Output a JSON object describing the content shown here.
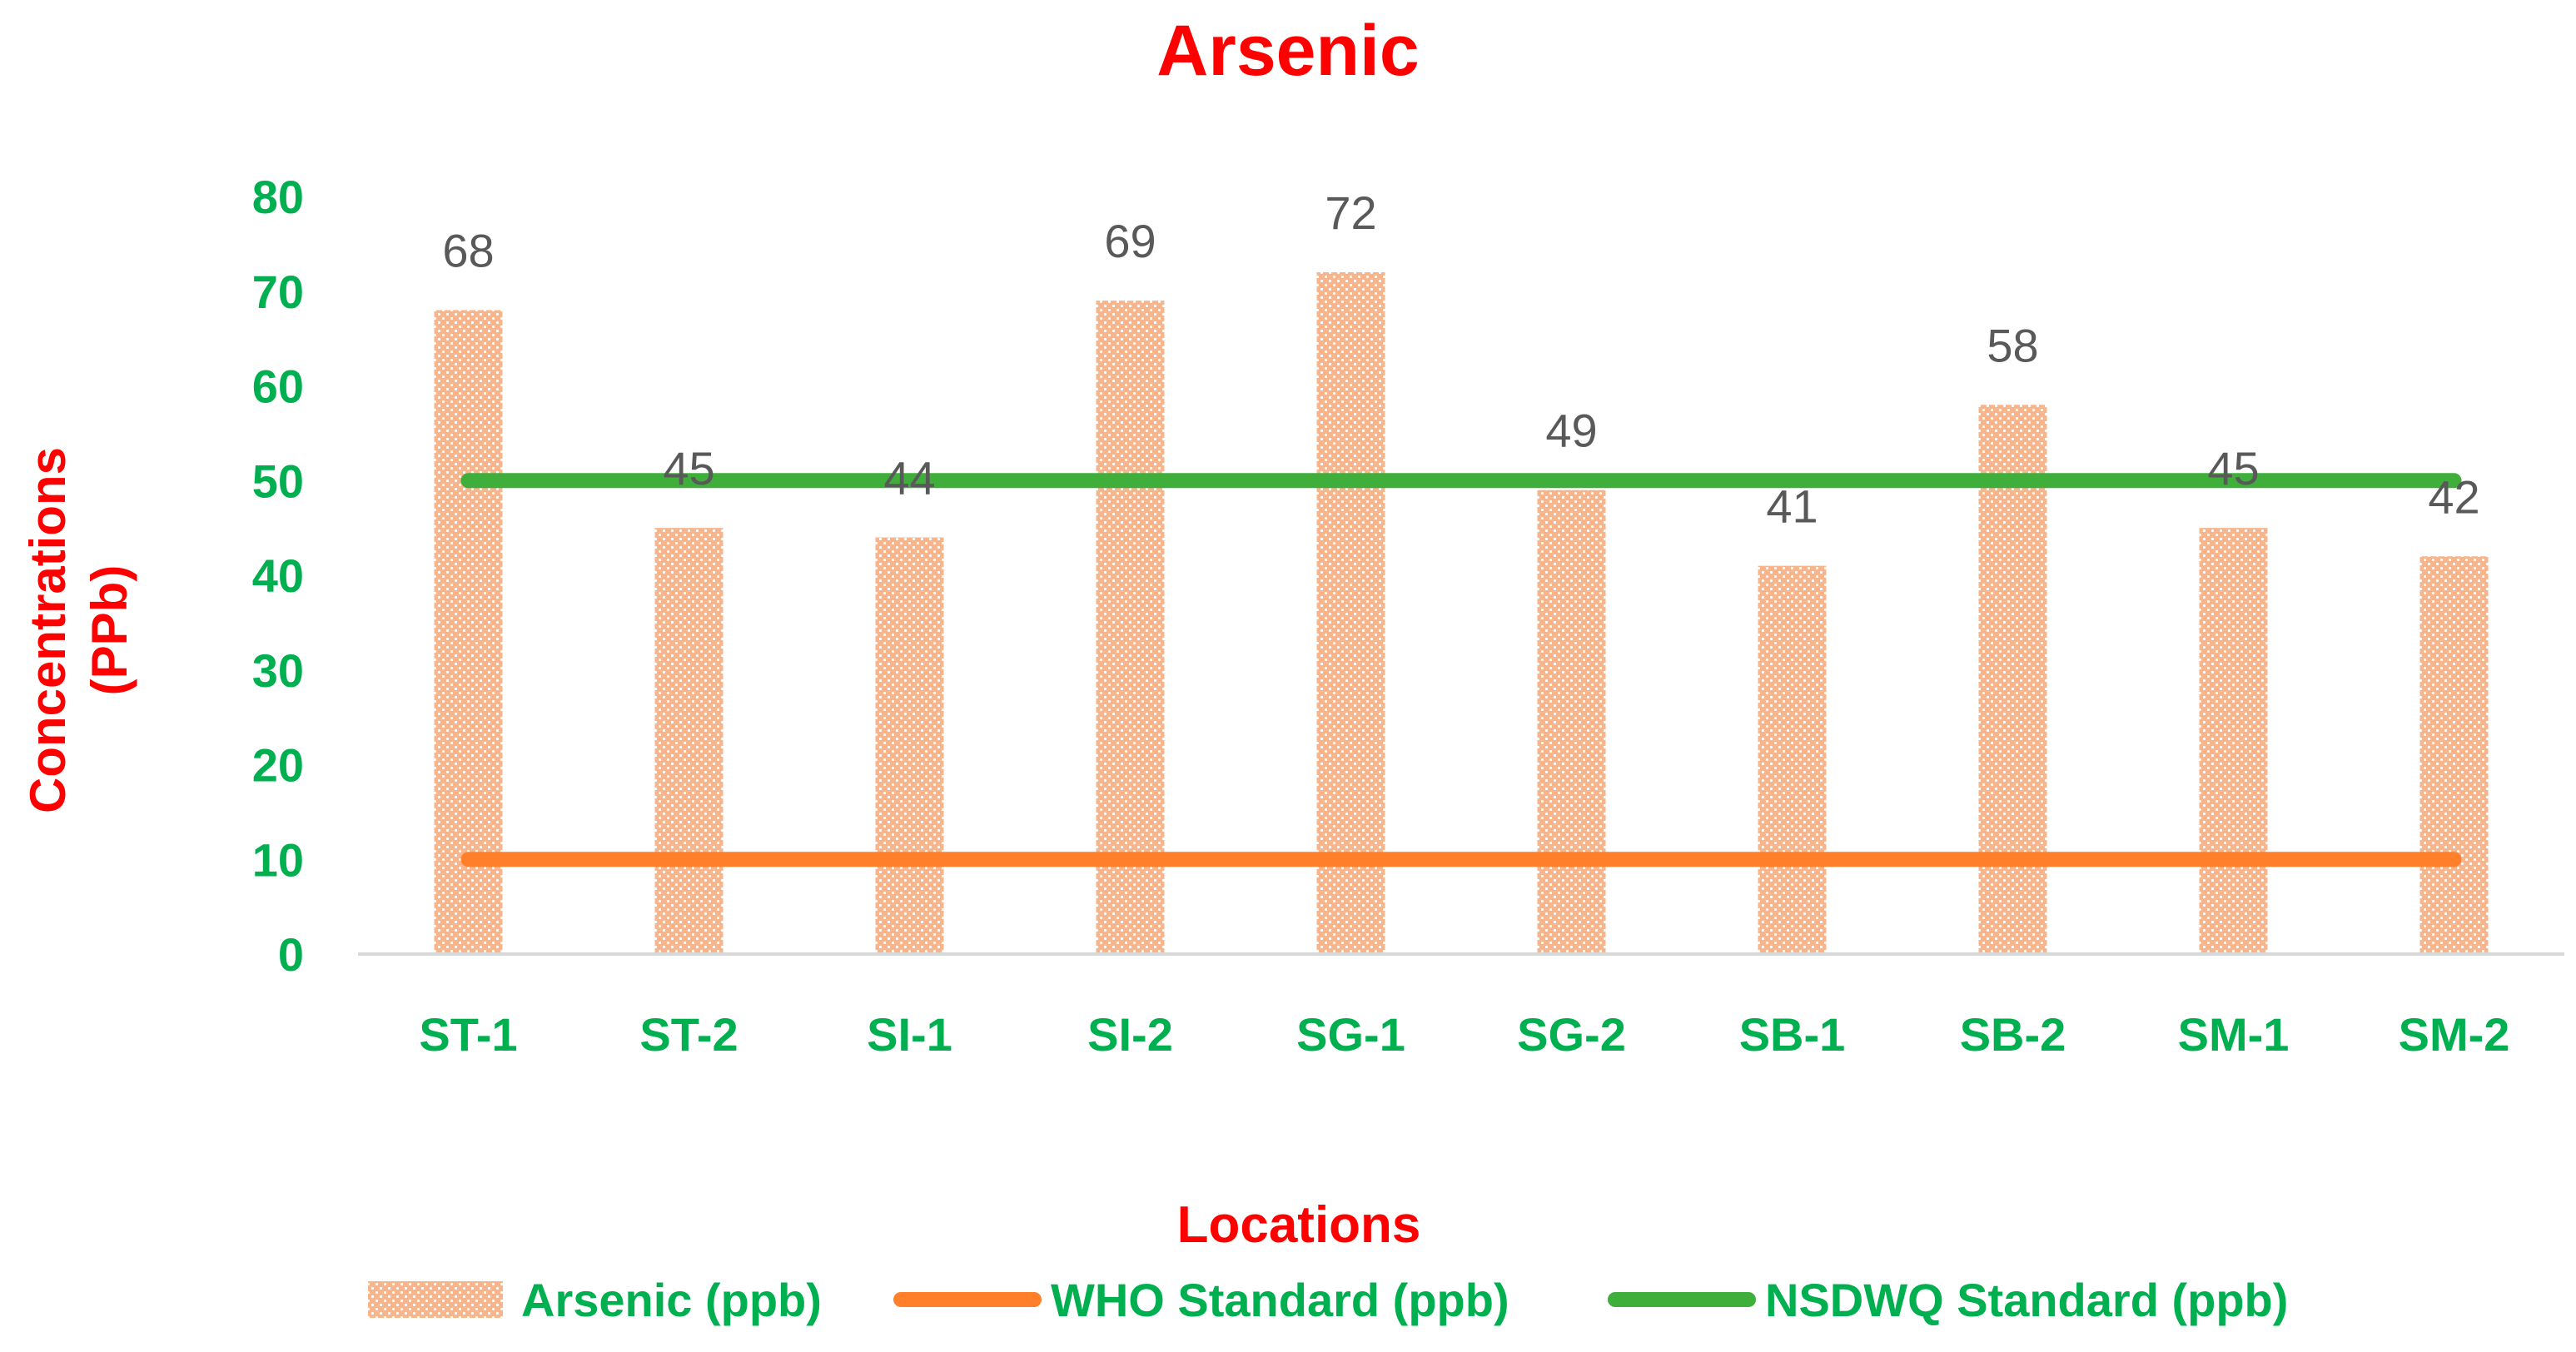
{
  "colors": {
    "title": "#ff0000",
    "axis_label": "#ff0000",
    "tick": "#00b050",
    "bar": "#f8b48a",
    "bar_dot": "#ffffff",
    "who_line": "#ff7f2a",
    "nsdwq_line": "#3fae3a",
    "data_label": "#595959",
    "axis_line": "#d9d9d9"
  },
  "chart_data": {
    "type": "bar",
    "title": "Arsenic",
    "xlabel": "Locations",
    "ylabel_lines": [
      "Concentrations",
      "(PPb)"
    ],
    "ylim": [
      0,
      80
    ],
    "yticks": [
      0,
      10,
      20,
      30,
      40,
      50,
      60,
      70,
      80
    ],
    "categories": [
      "ST-1",
      "ST-2",
      "SI-1",
      "SI-2",
      "SG-1",
      "SG-2",
      "SB-1",
      "SB-2",
      "SM-1",
      "SM-2"
    ],
    "series": [
      {
        "name": "Arsenic (ppb)",
        "kind": "bar",
        "values": [
          68,
          45,
          44,
          69,
          72,
          49,
          41,
          58,
          45,
          42
        ]
      },
      {
        "name": "WHO Standard (ppb)",
        "kind": "line",
        "values": [
          10,
          10,
          10,
          10,
          10,
          10,
          10,
          10,
          10,
          10
        ]
      },
      {
        "name": "NSDWQ Standard (ppb)",
        "kind": "line",
        "values": [
          50,
          50,
          50,
          50,
          50,
          50,
          50,
          50,
          50,
          50
        ]
      }
    ],
    "data_labels": [
      "68",
      "45",
      "44",
      "69",
      "72",
      "49",
      "41",
      "58",
      "45",
      "42"
    ],
    "legend_position": "bottom",
    "grid": false
  }
}
